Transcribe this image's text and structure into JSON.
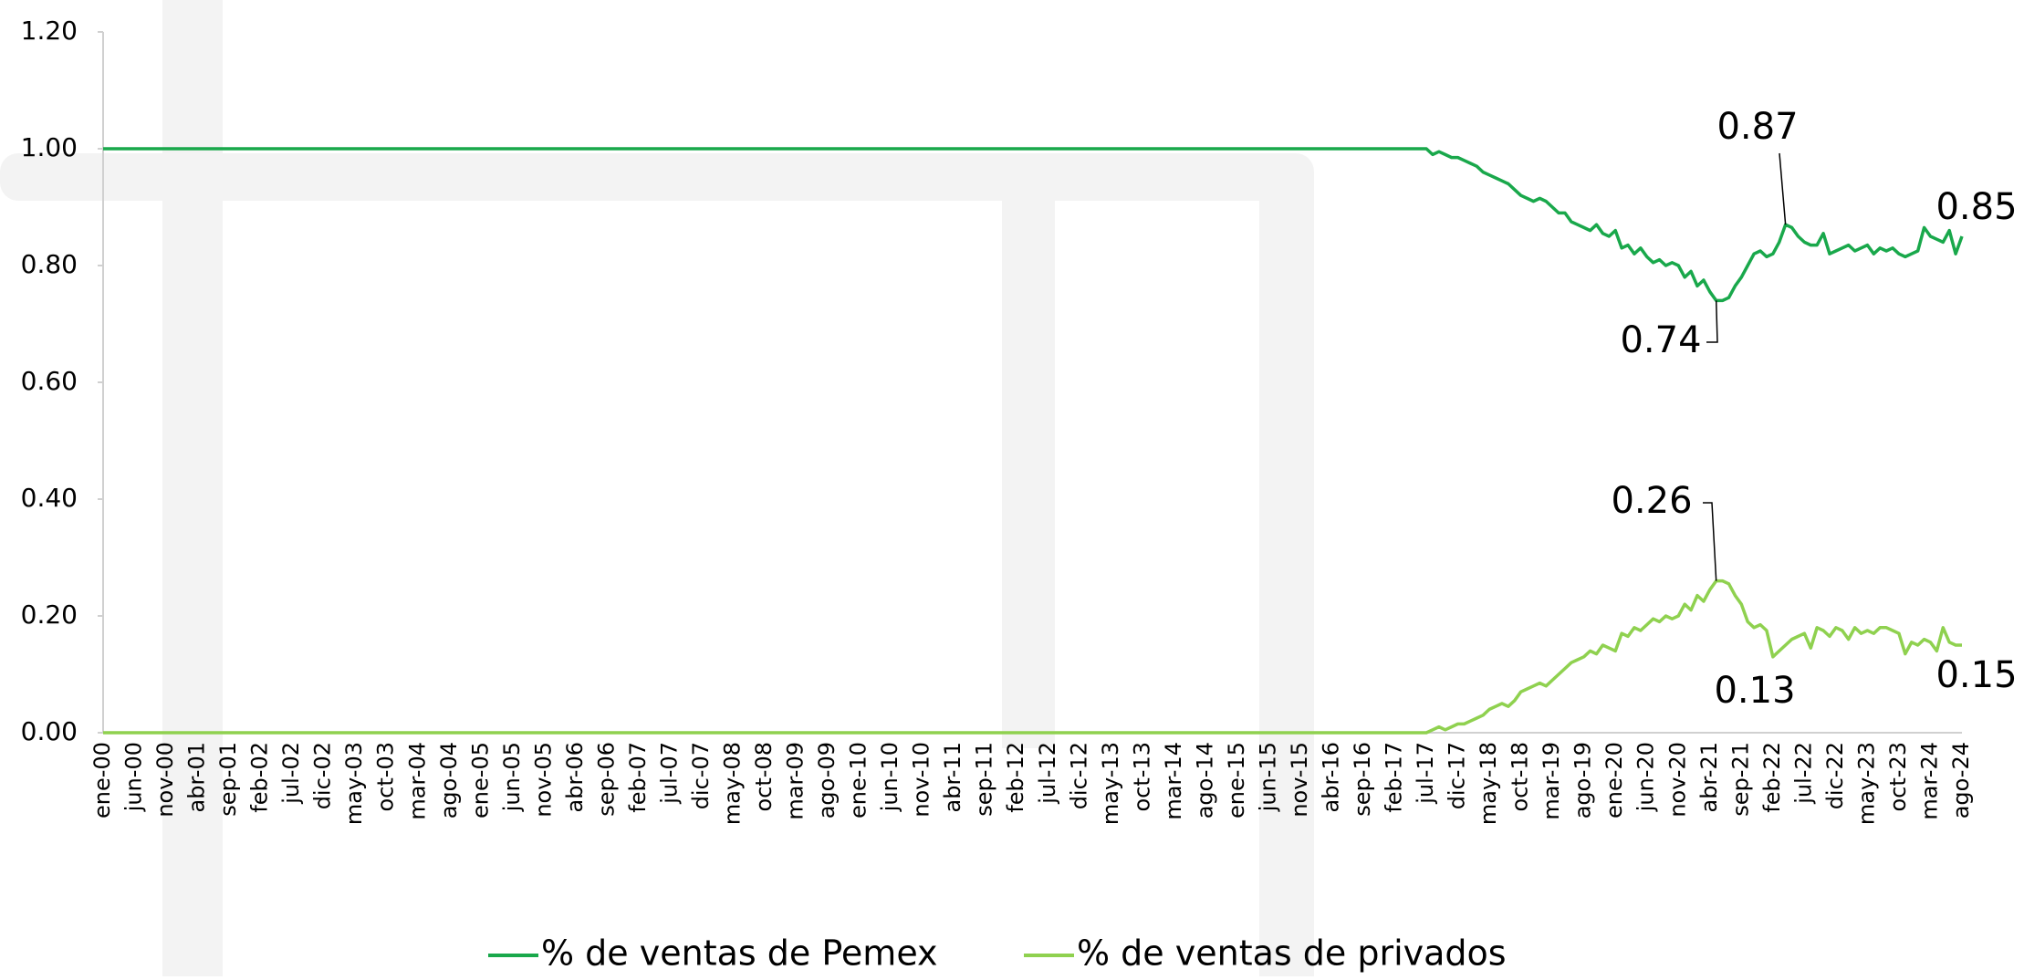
{
  "chart_data": {
    "type": "line",
    "categories": [
      "ene-00",
      null,
      null,
      null,
      null,
      "jun-00",
      null,
      null,
      null,
      null,
      "nov-00",
      null,
      null,
      null,
      null,
      "abr-01",
      null,
      null,
      null,
      null,
      "sep-01",
      null,
      null,
      null,
      null,
      "feb-02",
      null,
      null,
      null,
      null,
      "jul-02",
      null,
      null,
      null,
      null,
      "dic-02",
      null,
      null,
      null,
      null,
      "may-03",
      null,
      null,
      null,
      null,
      "oct-03",
      null,
      null,
      null,
      null,
      "mar-04",
      null,
      null,
      null,
      null,
      "ago-04",
      null,
      null,
      null,
      null,
      "ene-05",
      null,
      null,
      null,
      null,
      "jun-05",
      null,
      null,
      null,
      null,
      "nov-05",
      null,
      null,
      null,
      null,
      "abr-06",
      null,
      null,
      null,
      null,
      "sep-06",
      null,
      null,
      null,
      null,
      "feb-07",
      null,
      null,
      null,
      null,
      "jul-07",
      null,
      null,
      null,
      null,
      "dic-07",
      null,
      null,
      null,
      null,
      "may-08",
      null,
      null,
      null,
      null,
      "oct-08",
      null,
      null,
      null,
      null,
      "mar-09",
      null,
      null,
      null,
      null,
      "ago-09",
      null,
      null,
      null,
      null,
      "ene-10",
      null,
      null,
      null,
      null,
      "jun-10",
      null,
      null,
      null,
      null,
      "nov-10",
      null,
      null,
      null,
      null,
      "abr-11",
      null,
      null,
      null,
      null,
      "sep-11",
      null,
      null,
      null,
      null,
      "feb-12",
      null,
      null,
      null,
      null,
      "jul-12",
      null,
      null,
      null,
      null,
      "dic-12",
      null,
      null,
      null,
      null,
      "may-13",
      null,
      null,
      null,
      null,
      "oct-13",
      null,
      null,
      null,
      null,
      "mar-14",
      null,
      null,
      null,
      null,
      "ago-14",
      null,
      null,
      null,
      null,
      "ene-15",
      null,
      null,
      null,
      null,
      "jun-15",
      null,
      null,
      null,
      null,
      "nov-15",
      null,
      null,
      null,
      null,
      "abr-16",
      null,
      null,
      null,
      null,
      "sep-16",
      null,
      null,
      null,
      null,
      "feb-17",
      null,
      null,
      null,
      null,
      "jul-17",
      null,
      null,
      null,
      null,
      "dic-17",
      null,
      null,
      null,
      null,
      "may-18",
      null,
      null,
      null,
      null,
      "oct-18",
      null,
      null,
      null,
      null,
      "mar-19",
      null,
      null,
      null,
      null,
      "ago-19",
      null,
      null,
      null,
      null,
      "ene-20",
      null,
      null,
      null,
      null,
      "jun-20",
      null,
      null,
      null,
      null,
      "nov-20",
      null,
      null,
      null,
      null,
      "abr-21",
      null,
      null,
      null,
      null,
      "sep-21",
      null,
      null,
      null,
      null,
      "feb-22",
      null,
      null,
      null,
      null,
      "jul-22",
      null,
      null,
      null,
      null,
      "dic-22",
      null,
      null,
      null,
      null,
      "may-23",
      null,
      null,
      null,
      null,
      "oct-23",
      null,
      null,
      null,
      null,
      "mar-24",
      null,
      null,
      null,
      null,
      "ago-24"
    ],
    "series": [
      {
        "name": "% de ventas de Pemex",
        "color": "#19a84b",
        "values": [
          1,
          1,
          1,
          1,
          1,
          1,
          1,
          1,
          1,
          1,
          1,
          1,
          1,
          1,
          1,
          1,
          1,
          1,
          1,
          1,
          1,
          1,
          1,
          1,
          1,
          1,
          1,
          1,
          1,
          1,
          1,
          1,
          1,
          1,
          1,
          1,
          1,
          1,
          1,
          1,
          1,
          1,
          1,
          1,
          1,
          1,
          1,
          1,
          1,
          1,
          1,
          1,
          1,
          1,
          1,
          1,
          1,
          1,
          1,
          1,
          1,
          1,
          1,
          1,
          1,
          1,
          1,
          1,
          1,
          1,
          1,
          1,
          1,
          1,
          1,
          1,
          1,
          1,
          1,
          1,
          1,
          1,
          1,
          1,
          1,
          1,
          1,
          1,
          1,
          1,
          1,
          1,
          1,
          1,
          1,
          1,
          1,
          1,
          1,
          1,
          1,
          1,
          1,
          1,
          1,
          1,
          1,
          1,
          1,
          1,
          1,
          1,
          1,
          1,
          1,
          1,
          1,
          1,
          1,
          1,
          1,
          1,
          1,
          1,
          1,
          1,
          1,
          1,
          1,
          1,
          1,
          1,
          1,
          1,
          1,
          1,
          1,
          1,
          1,
          1,
          1,
          1,
          1,
          1,
          1,
          1,
          1,
          1,
          1,
          1,
          1,
          1,
          1,
          1,
          1,
          1,
          1,
          1,
          1,
          1,
          1,
          1,
          1,
          1,
          1,
          1,
          1,
          1,
          1,
          1,
          1,
          1,
          1,
          1,
          1,
          1,
          1,
          1,
          1,
          1,
          1,
          1,
          1,
          1,
          1,
          1,
          1,
          1,
          1,
          1,
          1,
          1,
          1,
          1,
          1,
          1,
          1,
          1,
          1,
          1,
          1,
          1,
          1,
          1,
          1,
          1,
          1,
          1,
          1,
          1,
          1,
          0.99,
          0.995,
          0.99,
          0.985,
          0.985,
          0.98,
          0.975,
          0.97,
          0.96,
          0.955,
          0.95,
          0.945,
          0.94,
          0.93,
          0.92,
          0.915,
          0.91,
          0.915,
          0.91,
          0.9,
          0.89,
          0.89,
          0.875,
          0.87,
          0.865,
          0.86,
          0.87,
          0.855,
          0.85,
          0.86,
          0.83,
          0.835,
          0.82,
          0.83,
          0.815,
          0.805,
          0.81,
          0.8,
          0.805,
          0.8,
          0.78,
          0.79,
          0.765,
          0.775,
          0.755,
          0.74,
          0.74,
          0.745,
          0.765,
          0.78,
          0.8,
          0.82,
          0.825,
          0.815,
          0.82,
          0.84,
          0.87,
          0.865,
          0.85,
          0.84,
          0.835,
          0.835,
          0.855,
          0.82,
          0.825,
          0.83,
          0.835,
          0.825,
          0.83,
          0.835,
          0.82,
          0.83,
          0.825,
          0.83,
          0.82,
          0.815,
          0.82,
          0.825,
          0.865,
          0.85,
          0.845,
          0.84,
          0.86,
          0.82,
          0.85
        ]
      },
      {
        "name": "% de ventas de privados",
        "color": "#8fd14f",
        "values": [
          0,
          0,
          0,
          0,
          0,
          0,
          0,
          0,
          0,
          0,
          0,
          0,
          0,
          0,
          0,
          0,
          0,
          0,
          0,
          0,
          0,
          0,
          0,
          0,
          0,
          0,
          0,
          0,
          0,
          0,
          0,
          0,
          0,
          0,
          0,
          0,
          0,
          0,
          0,
          0,
          0,
          0,
          0,
          0,
          0,
          0,
          0,
          0,
          0,
          0,
          0,
          0,
          0,
          0,
          0,
          0,
          0,
          0,
          0,
          0,
          0,
          0,
          0,
          0,
          0,
          0,
          0,
          0,
          0,
          0,
          0,
          0,
          0,
          0,
          0,
          0,
          0,
          0,
          0,
          0,
          0,
          0,
          0,
          0,
          0,
          0,
          0,
          0,
          0,
          0,
          0,
          0,
          0,
          0,
          0,
          0,
          0,
          0,
          0,
          0,
          0,
          0,
          0,
          0,
          0,
          0,
          0,
          0,
          0,
          0,
          0,
          0,
          0,
          0,
          0,
          0,
          0,
          0,
          0,
          0,
          0,
          0,
          0,
          0,
          0,
          0,
          0,
          0,
          0,
          0,
          0,
          0,
          0,
          0,
          0,
          0,
          0,
          0,
          0,
          0,
          0,
          0,
          0,
          0,
          0,
          0,
          0,
          0,
          0,
          0,
          0,
          0,
          0,
          0,
          0,
          0,
          0,
          0,
          0,
          0,
          0,
          0,
          0,
          0,
          0,
          0,
          0,
          0,
          0,
          0,
          0,
          0,
          0,
          0,
          0,
          0,
          0,
          0,
          0,
          0,
          0,
          0,
          0,
          0,
          0,
          0,
          0,
          0,
          0,
          0,
          0,
          0,
          0,
          0,
          0,
          0,
          0,
          0,
          0,
          0,
          0,
          0,
          0,
          0,
          0,
          0,
          0,
          0,
          0,
          0,
          0,
          0.005,
          0.01,
          0.005,
          0.01,
          0.015,
          0.015,
          0.02,
          0.025,
          0.03,
          0.04,
          0.045,
          0.05,
          0.045,
          0.055,
          0.07,
          0.075,
          0.08,
          0.085,
          0.08,
          0.09,
          0.1,
          0.11,
          0.12,
          0.125,
          0.13,
          0.14,
          0.135,
          0.15,
          0.145,
          0.14,
          0.17,
          0.165,
          0.18,
          0.175,
          0.185,
          0.195,
          0.19,
          0.2,
          0.195,
          0.2,
          0.22,
          0.21,
          0.235,
          0.225,
          0.245,
          0.26,
          0.26,
          0.255,
          0.235,
          0.22,
          0.19,
          0.18,
          0.185,
          0.175,
          0.13,
          0.14,
          0.15,
          0.16,
          0.165,
          0.17,
          0.145,
          0.18,
          0.175,
          0.165,
          0.18,
          0.175,
          0.16,
          0.18,
          0.17,
          0.175,
          0.17,
          0.18,
          0.18,
          0.175,
          0.17,
          0.135,
          0.155,
          0.15,
          0.16,
          0.155,
          0.14,
          0.18,
          0.155,
          0.15,
          0.15
        ]
      }
    ],
    "annotations": [
      {
        "series": 0,
        "index": 267,
        "label": "0.87"
      },
      {
        "series": 0,
        "index": 256,
        "label": "0.74"
      },
      {
        "series": 0,
        "index": 295,
        "label": "0.85"
      },
      {
        "series": 1,
        "index": 256,
        "label": "0.26"
      },
      {
        "series": 1,
        "index": 265,
        "label": "0.13"
      },
      {
        "series": 1,
        "index": 295,
        "label": "0.15"
      }
    ],
    "ylim": [
      0,
      1.2
    ],
    "yticks": [
      {
        "value": 0,
        "label": "0.00"
      },
      {
        "value": 0.2,
        "label": "0.20"
      },
      {
        "value": 0.4,
        "label": "0.40"
      },
      {
        "value": 0.6,
        "label": "0.60"
      },
      {
        "value": 0.8,
        "label": "0.80"
      },
      {
        "value": 1,
        "label": "1.00"
      },
      {
        "value": 1.2,
        "label": "1.20"
      }
    ],
    "grid": false,
    "legend": "bottom"
  }
}
